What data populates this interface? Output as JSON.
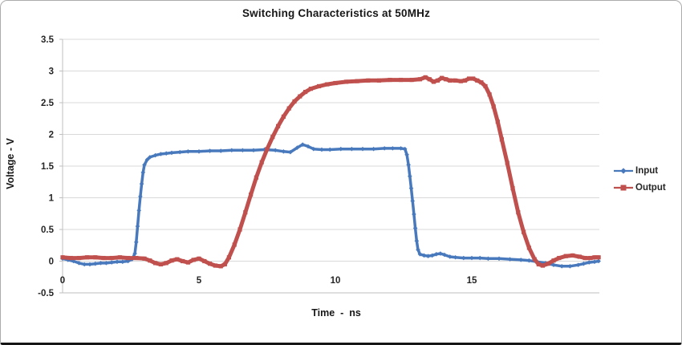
{
  "chart_data": {
    "type": "line",
    "title": "Switching Characteristics at 50MHz",
    "xlabel": "Time  -  ns",
    "ylabel": "Voltage - V",
    "xlim": [
      0,
      19.7
    ],
    "ylim": [
      -0.5,
      3.5
    ],
    "grid": "horizontal",
    "legend_position": "right",
    "colors": {
      "grid": "#D9D9D9",
      "axis": "#BFBFBF",
      "tick_text": "#262626",
      "title_text": "#171717"
    },
    "x_ticks": [
      {
        "value": 0,
        "label": "0"
      },
      {
        "value": 5,
        "label": "5"
      },
      {
        "value": 10,
        "label": "10"
      },
      {
        "value": 15,
        "label": "15"
      }
    ],
    "y_ticks": [
      {
        "value": -0.5,
        "label": "-0.5"
      },
      {
        "value": 0,
        "label": "0"
      },
      {
        "value": 0.5,
        "label": "0.5"
      },
      {
        "value": 1,
        "label": "1"
      },
      {
        "value": 1.5,
        "label": "1.5"
      },
      {
        "value": 2,
        "label": "2"
      },
      {
        "value": 2.5,
        "label": "2.5"
      },
      {
        "value": 3,
        "label": "3"
      },
      {
        "value": 3.5,
        "label": "3.5"
      }
    ],
    "series": [
      {
        "name": "Input",
        "color": "#4879BD",
        "marker": "diamond",
        "line_width": 3.5,
        "points": [
          [
            0,
            0.04
          ],
          [
            0.2,
            0.02
          ],
          [
            0.4,
            0
          ],
          [
            0.6,
            -0.03
          ],
          [
            0.8,
            -0.05
          ],
          [
            1,
            -0.05
          ],
          [
            1.2,
            -0.04
          ],
          [
            1.4,
            -0.03
          ],
          [
            1.6,
            -0.03
          ],
          [
            1.8,
            -0.02
          ],
          [
            2,
            -0.01
          ],
          [
            2.2,
            -0.01
          ],
          [
            2.4,
            0
          ],
          [
            2.55,
            0.03
          ],
          [
            2.65,
            0.12
          ],
          [
            2.7,
            0.3
          ],
          [
            2.75,
            0.55
          ],
          [
            2.8,
            0.8
          ],
          [
            2.85,
            1.02
          ],
          [
            2.9,
            1.22
          ],
          [
            2.95,
            1.4
          ],
          [
            3,
            1.52
          ],
          [
            3.1,
            1.6
          ],
          [
            3.2,
            1.64
          ],
          [
            3.4,
            1.67
          ],
          [
            3.6,
            1.69
          ],
          [
            3.8,
            1.7
          ],
          [
            4,
            1.71
          ],
          [
            4.3,
            1.72
          ],
          [
            4.6,
            1.73
          ],
          [
            5,
            1.73
          ],
          [
            5.4,
            1.74
          ],
          [
            5.8,
            1.74
          ],
          [
            6.2,
            1.75
          ],
          [
            6.6,
            1.75
          ],
          [
            7,
            1.75
          ],
          [
            7.4,
            1.76
          ],
          [
            7.8,
            1.75
          ],
          [
            8.1,
            1.73
          ],
          [
            8.35,
            1.72
          ],
          [
            8.6,
            1.79
          ],
          [
            8.8,
            1.84
          ],
          [
            9,
            1.81
          ],
          [
            9.2,
            1.77
          ],
          [
            9.5,
            1.76
          ],
          [
            9.8,
            1.76
          ],
          [
            10.2,
            1.77
          ],
          [
            10.6,
            1.77
          ],
          [
            11,
            1.77
          ],
          [
            11.4,
            1.77
          ],
          [
            11.8,
            1.78
          ],
          [
            12.1,
            1.78
          ],
          [
            12.4,
            1.78
          ],
          [
            12.55,
            1.77
          ],
          [
            12.62,
            1.68
          ],
          [
            12.68,
            1.52
          ],
          [
            12.73,
            1.34
          ],
          [
            12.78,
            1.15
          ],
          [
            12.83,
            0.95
          ],
          [
            12.88,
            0.74
          ],
          [
            12.93,
            0.52
          ],
          [
            12.98,
            0.32
          ],
          [
            13.03,
            0.18
          ],
          [
            13.1,
            0.11
          ],
          [
            13.25,
            0.09
          ],
          [
            13.4,
            0.08
          ],
          [
            13.55,
            0.09
          ],
          [
            13.7,
            0.11
          ],
          [
            13.85,
            0.12
          ],
          [
            14,
            0.1
          ],
          [
            14.2,
            0.07
          ],
          [
            14.4,
            0.06
          ],
          [
            14.7,
            0.05
          ],
          [
            15,
            0.05
          ],
          [
            15.3,
            0.05
          ],
          [
            15.6,
            0.04
          ],
          [
            16,
            0.04
          ],
          [
            16.4,
            0.03
          ],
          [
            16.8,
            0.02
          ],
          [
            17.1,
            0.01
          ],
          [
            17.4,
            -0.01
          ],
          [
            17.7,
            -0.03
          ],
          [
            18,
            -0.06
          ],
          [
            18.3,
            -0.08
          ],
          [
            18.6,
            -0.08
          ],
          [
            18.9,
            -0.06
          ],
          [
            19.1,
            -0.04
          ],
          [
            19.3,
            -0.02
          ],
          [
            19.5,
            -0.01
          ],
          [
            19.65,
            0
          ]
        ]
      },
      {
        "name": "Output",
        "color": "#C0504D",
        "marker": "square",
        "line_width": 5,
        "points": [
          [
            0,
            0.06
          ],
          [
            0.3,
            0.05
          ],
          [
            0.6,
            0.05
          ],
          [
            0.9,
            0.06
          ],
          [
            1.2,
            0.06
          ],
          [
            1.5,
            0.05
          ],
          [
            1.8,
            0.05
          ],
          [
            2.1,
            0.06
          ],
          [
            2.4,
            0.05
          ],
          [
            2.7,
            0.05
          ],
          [
            3,
            0.04
          ],
          [
            3.2,
            0.01
          ],
          [
            3.4,
            -0.03
          ],
          [
            3.6,
            -0.05
          ],
          [
            3.8,
            -0.03
          ],
          [
            4,
            0.01
          ],
          [
            4.2,
            0.03
          ],
          [
            4.4,
            0
          ],
          [
            4.6,
            -0.02
          ],
          [
            4.8,
            0.02
          ],
          [
            5,
            0.04
          ],
          [
            5.2,
            0
          ],
          [
            5.4,
            -0.04
          ],
          [
            5.6,
            -0.07
          ],
          [
            5.8,
            -0.08
          ],
          [
            5.95,
            -0.05
          ],
          [
            6.1,
            0.06
          ],
          [
            6.3,
            0.26
          ],
          [
            6.5,
            0.5
          ],
          [
            6.7,
            0.77
          ],
          [
            6.9,
            1.05
          ],
          [
            7.1,
            1.32
          ],
          [
            7.3,
            1.56
          ],
          [
            7.5,
            1.77
          ],
          [
            7.7,
            1.96
          ],
          [
            7.9,
            2.13
          ],
          [
            8.1,
            2.28
          ],
          [
            8.3,
            2.41
          ],
          [
            8.5,
            2.52
          ],
          [
            8.7,
            2.6
          ],
          [
            8.9,
            2.67
          ],
          [
            9.1,
            2.72
          ],
          [
            9.4,
            2.76
          ],
          [
            9.7,
            2.79
          ],
          [
            10,
            2.81
          ],
          [
            10.4,
            2.83
          ],
          [
            10.8,
            2.84
          ],
          [
            11.2,
            2.85
          ],
          [
            11.6,
            2.85
          ],
          [
            12,
            2.86
          ],
          [
            12.4,
            2.86
          ],
          [
            12.8,
            2.86
          ],
          [
            13.1,
            2.87
          ],
          [
            13.3,
            2.9
          ],
          [
            13.45,
            2.87
          ],
          [
            13.6,
            2.83
          ],
          [
            13.75,
            2.85
          ],
          [
            13.9,
            2.89
          ],
          [
            14.05,
            2.87
          ],
          [
            14.2,
            2.85
          ],
          [
            14.4,
            2.85
          ],
          [
            14.6,
            2.84
          ],
          [
            14.75,
            2.85
          ],
          [
            14.9,
            2.88
          ],
          [
            15.05,
            2.88
          ],
          [
            15.2,
            2.85
          ],
          [
            15.35,
            2.82
          ],
          [
            15.5,
            2.76
          ],
          [
            15.65,
            2.63
          ],
          [
            15.8,
            2.44
          ],
          [
            15.95,
            2.2
          ],
          [
            16.1,
            1.92
          ],
          [
            16.3,
            1.55
          ],
          [
            16.5,
            1.15
          ],
          [
            16.7,
            0.77
          ],
          [
            16.9,
            0.46
          ],
          [
            17.1,
            0.21
          ],
          [
            17.3,
            0.03
          ],
          [
            17.45,
            -0.05
          ],
          [
            17.6,
            -0.07
          ],
          [
            17.8,
            -0.04
          ],
          [
            18,
            0.01
          ],
          [
            18.2,
            0.05
          ],
          [
            18.45,
            0.08
          ],
          [
            18.7,
            0.09
          ],
          [
            18.95,
            0.07
          ],
          [
            19.15,
            0.05
          ],
          [
            19.35,
            0.05
          ],
          [
            19.5,
            0.06
          ],
          [
            19.65,
            0.06
          ]
        ]
      }
    ]
  }
}
